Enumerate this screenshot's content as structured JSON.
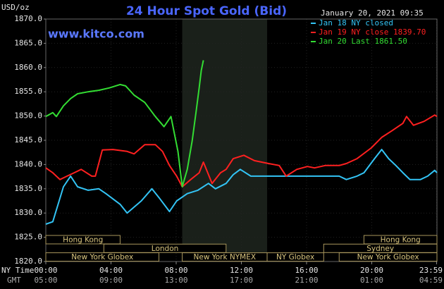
{
  "chart_data": {
    "type": "line",
    "title": "24 Hour Spot Gold (Bid)",
    "unit_label": "USD/oz",
    "website": "www.kitco.com",
    "timestamp": "January 20, 2021 09:35",
    "xlim": [
      0,
      24
    ],
    "xticks": [
      {
        "value": 0,
        "label": "00:00"
      },
      {
        "value": 4,
        "label": "04:00"
      },
      {
        "value": 8,
        "label": "08:00"
      },
      {
        "value": 12,
        "label": "12:00"
      },
      {
        "value": 16,
        "label": "16:00"
      },
      {
        "value": 20,
        "label": "20:00"
      },
      {
        "value": 23.98,
        "label": "23:59"
      }
    ],
    "gmt_tick_labels": [
      "05:00",
      "09:00",
      "13:00",
      "17:00",
      "21:00",
      "01:00",
      "04:59"
    ],
    "x_row_labels": [
      "NY Time",
      "GMT"
    ],
    "ylim": [
      1820,
      1870
    ],
    "yticks": [
      {
        "value": 1820,
        "label": "1820.0"
      },
      {
        "value": 1825,
        "label": "1825.0"
      },
      {
        "value": 1830,
        "label": "1830.0"
      },
      {
        "value": 1835,
        "label": "1835.0"
      },
      {
        "value": 1840,
        "label": "1840.0"
      },
      {
        "value": 1845,
        "label": "1845.0"
      },
      {
        "value": 1850,
        "label": "1850.0"
      },
      {
        "value": 1855,
        "label": "1855.0"
      },
      {
        "value": 1860,
        "label": "1860.0"
      },
      {
        "value": 1865,
        "label": "1865.0"
      },
      {
        "value": 1870,
        "label": "1870.0"
      }
    ],
    "grid": true,
    "series": [
      {
        "name": "Jan 18 NY closed",
        "color": "#33c4f5",
        "x": [
          0,
          0.43,
          1.08,
          1.52,
          1.95,
          2.6,
          3.25,
          3.69,
          4.56,
          4.99,
          5.86,
          6.51,
          6.94,
          7.59,
          8.03,
          8.68,
          9.33,
          9.98,
          10.41,
          11.06,
          11.5,
          11.93,
          12.58,
          13.02,
          18.0,
          18.44,
          19.09,
          19.52,
          20.17,
          20.61,
          21.04,
          21.48,
          21.91,
          22.34,
          22.99,
          23.43,
          23.86,
          24
        ],
        "values": [
          1827.7,
          1828.2,
          1835.4,
          1837.6,
          1835.4,
          1834.7,
          1835.0,
          1834.0,
          1831.8,
          1830.0,
          1832.5,
          1835.0,
          1833.2,
          1830.3,
          1832.5,
          1834.0,
          1834.7,
          1836.1,
          1835.0,
          1836.1,
          1837.9,
          1839.0,
          1837.6,
          1837.6,
          1837.6,
          1836.9,
          1837.6,
          1838.3,
          1841.2,
          1843.1,
          1841.2,
          1839.8,
          1838.3,
          1836.9,
          1836.9,
          1837.6,
          1838.8,
          1838.3
        ]
      },
      {
        "name": "Jan 19 NY close 1839.70",
        "color": "#ff2020",
        "x": [
          0,
          0.43,
          0.87,
          1.3,
          1.74,
          2.17,
          2.82,
          3.04,
          3.47,
          4.12,
          4.99,
          5.42,
          6.07,
          6.72,
          7.16,
          7.59,
          8.03,
          8.37,
          8.89,
          9.41,
          9.67,
          10.2,
          10.72,
          11.06,
          11.5,
          12.15,
          12.8,
          13.67,
          14.32,
          14.75,
          15.4,
          16.05,
          16.49,
          17.14,
          18.0,
          18.44,
          19.09,
          19.96,
          20.61,
          21.26,
          21.91,
          22.13,
          22.56,
          23.21,
          23.86,
          24
        ],
        "values": [
          1839.3,
          1838.3,
          1836.9,
          1837.6,
          1838.3,
          1839.0,
          1837.6,
          1837.6,
          1843.0,
          1843.1,
          1842.7,
          1842.2,
          1844.1,
          1844.1,
          1842.7,
          1839.8,
          1837.6,
          1835.4,
          1836.9,
          1838.3,
          1840.5,
          1836.1,
          1838.3,
          1839.0,
          1841.2,
          1841.9,
          1840.8,
          1840.2,
          1839.8,
          1837.6,
          1839.0,
          1839.6,
          1839.3,
          1839.8,
          1839.8,
          1840.2,
          1841.2,
          1843.4,
          1845.6,
          1847.0,
          1848.5,
          1849.9,
          1848.1,
          1848.9,
          1850.2,
          1849.9
        ]
      },
      {
        "name": "Jan 20 Last 1861.50",
        "color": "#33dd33",
        "x": [
          0,
          0.43,
          0.65,
          1.08,
          1.52,
          1.95,
          2.6,
          3.25,
          3.9,
          4.56,
          4.9,
          5.42,
          6.07,
          6.72,
          7.25,
          7.68,
          8.11,
          8.37,
          8.68,
          8.98,
          9.24,
          9.41,
          9.54,
          9.67
        ],
        "values": [
          1849.9,
          1850.7,
          1849.9,
          1852.1,
          1853.6,
          1854.6,
          1855.0,
          1855.3,
          1855.8,
          1856.5,
          1856.2,
          1854.3,
          1852.8,
          1849.9,
          1847.8,
          1849.9,
          1842.7,
          1835.4,
          1839.0,
          1844.9,
          1851.4,
          1855.8,
          1859.4,
          1861.5
        ]
      }
    ],
    "sessions": [
      [
        {
          "label": "Hong Kong",
          "start": 0,
          "end": 4.56
        },
        {
          "label": "Hong Kong",
          "start": 19.52,
          "end": 24
        }
      ],
      [
        {
          "label": "London",
          "start": 3.56,
          "end": 11.06
        },
        {
          "label": "Sydney",
          "start": 17.05,
          "end": 24
        }
      ],
      [
        {
          "label": "New York Globex",
          "start": 0,
          "end": 6.94
        },
        {
          "label": "New York NYMEX",
          "start": 8.37,
          "end": 13.58
        },
        {
          "label": "NY Globex",
          "start": 13.58,
          "end": 17.05
        },
        {
          "label": "New York Globex",
          "start": 18.0,
          "end": 24
        }
      ]
    ]
  }
}
